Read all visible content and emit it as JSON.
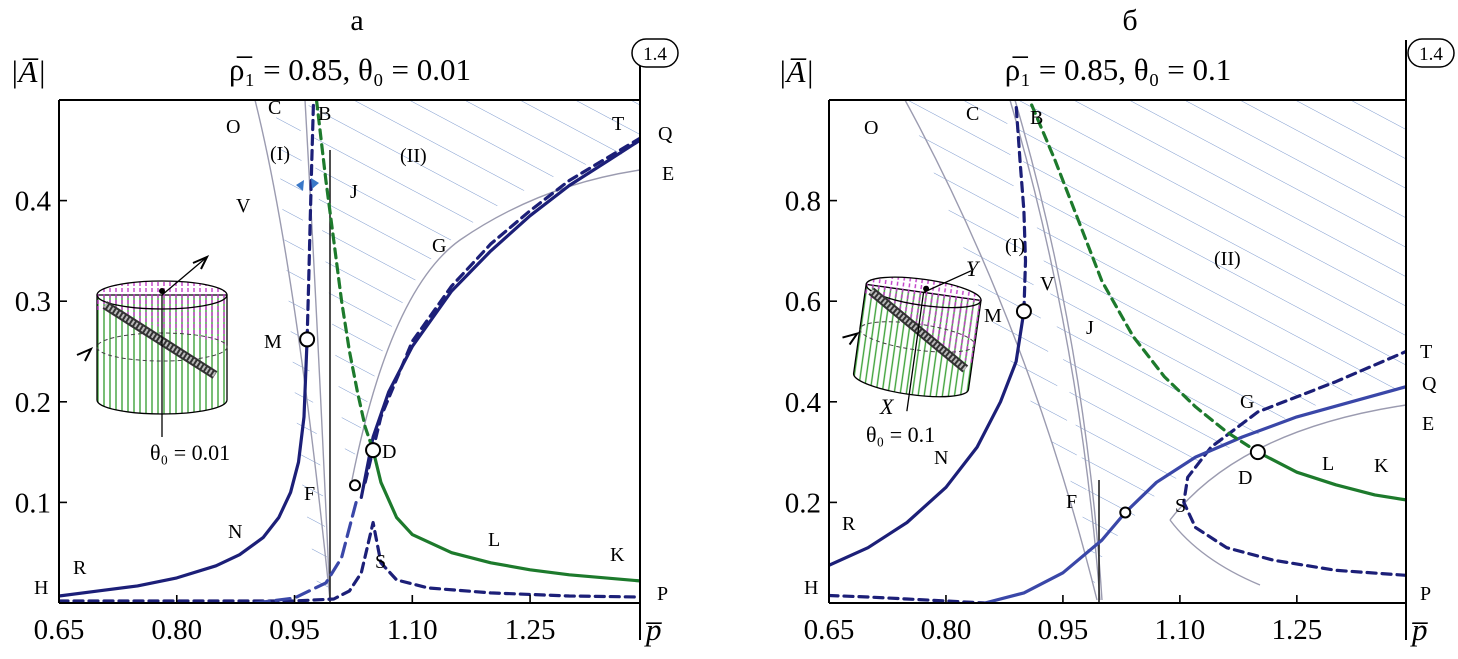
{
  "figure_label": "1.4",
  "axis_y_label": "|A̅|",
  "axis_x_label": "p̅",
  "colors": {
    "navy": "#1c1f78",
    "blue": "#3a47a8",
    "green": "#1d7a2c",
    "hatch": "#6f8fc9",
    "gray": "#9b9bb0"
  },
  "chart_data": [
    {
      "type": "line",
      "panel_label": "а",
      "title": "ρ̅₁ = 0.85, θ₀ = 0.01",
      "xlabel": "p̅",
      "ylabel": "|A̅|",
      "x_ticks": [
        "0.65",
        "0.80",
        "0.95",
        "1.10",
        "1.25"
      ],
      "y_ticks": [
        "0.1",
        "0.2",
        "0.3",
        "0.4"
      ],
      "xlim": [
        0.65,
        1.39
      ],
      "ylim": [
        0.0,
        0.5
      ],
      "inset_label": "θ₀ = 0.01",
      "region_labels": [
        "(I)",
        "(II)"
      ],
      "point_labels": [
        "O",
        "C",
        "B",
        "T",
        "Q",
        "E",
        "V",
        "J",
        "G",
        "M",
        "D",
        "F",
        "N",
        "L",
        "K",
        "S",
        "R",
        "H",
        "P"
      ],
      "marked_points": [
        {
          "name": "M",
          "x": 0.966,
          "y": 0.262
        },
        {
          "name": "D",
          "x": 1.05,
          "y": 0.152
        },
        {
          "name": "F",
          "x": 1.027,
          "y": 0.117
        }
      ],
      "series": [
        {
          "label": "N–M (solid)",
          "color": "navy",
          "dash": "solid",
          "x": [
            0.65,
            0.7,
            0.75,
            0.8,
            0.85,
            0.88,
            0.91,
            0.93,
            0.945,
            0.955,
            0.962,
            0.966
          ],
          "y": [
            0.007,
            0.012,
            0.017,
            0.025,
            0.037,
            0.048,
            0.065,
            0.085,
            0.11,
            0.14,
            0.185,
            0.262
          ]
        },
        {
          "label": "M–C (dashed)",
          "color": "navy",
          "dash": "dash",
          "x": [
            0.966,
            0.968,
            0.97,
            0.972,
            0.974
          ],
          "y": [
            0.262,
            0.32,
            0.38,
            0.44,
            0.495
          ]
        },
        {
          "label": "lower dashed",
          "color": "navy",
          "dash": "dash",
          "x": [
            0.65,
            0.8,
            0.95,
            1.0,
            1.02,
            1.035,
            1.05,
            1.06,
            1.08,
            1.12,
            1.2,
            1.3,
            1.39
          ],
          "y": [
            0.002,
            0.002,
            0.002,
            0.004,
            0.012,
            0.03,
            0.08,
            0.04,
            0.023,
            0.015,
            0.01,
            0.007,
            0.006
          ]
        },
        {
          "label": "G–T (solid)",
          "color": "navy",
          "dash": "solid",
          "x": [
            1.035,
            1.05,
            1.07,
            1.1,
            1.15,
            1.2,
            1.25,
            1.3,
            1.35,
            1.39
          ],
          "y": [
            0.105,
            0.165,
            0.21,
            0.255,
            0.31,
            0.35,
            0.385,
            0.415,
            0.44,
            0.46
          ]
        },
        {
          "label": "upper dashed",
          "color": "navy",
          "dash": "dash",
          "x": [
            1.04,
            1.06,
            1.1,
            1.15,
            1.2,
            1.25,
            1.3,
            1.39
          ],
          "y": [
            0.12,
            0.185,
            0.26,
            0.315,
            0.357,
            0.39,
            0.42,
            0.462
          ]
        },
        {
          "label": "blue dashed",
          "color": "blue",
          "dash": "longdash",
          "x": [
            0.9,
            0.95,
            0.99,
            1.01,
            1.02,
            1.03
          ],
          "y": [
            0.0,
            0.005,
            0.02,
            0.045,
            0.075,
            0.105
          ]
        },
        {
          "label": "B–D (dashed)",
          "color": "green",
          "dash": "dash",
          "x": [
            0.978,
            0.99,
            1.0,
            1.01,
            1.02,
            1.03,
            1.04,
            1.05
          ],
          "y": [
            0.5,
            0.42,
            0.36,
            0.3,
            0.25,
            0.21,
            0.175,
            0.152
          ]
        },
        {
          "label": "D–K (solid)",
          "color": "green",
          "dash": "solid",
          "x": [
            1.05,
            1.06,
            1.08,
            1.1,
            1.15,
            1.2,
            1.25,
            1.3,
            1.39
          ],
          "y": [
            0.152,
            0.12,
            0.085,
            0.068,
            0.05,
            0.04,
            0.033,
            0.028,
            0.022
          ]
        }
      ]
    },
    {
      "type": "line",
      "panel_label": "б",
      "title": "ρ̅₁ = 0.85, θ₀ = 0.1",
      "xlabel": "p̅",
      "ylabel": "|A̅|",
      "x_ticks": [
        "0.65",
        "0.80",
        "0.95",
        "1.10",
        "1.25"
      ],
      "y_ticks": [
        "0.2",
        "0.4",
        "0.6",
        "0.8"
      ],
      "xlim": [
        0.65,
        1.39
      ],
      "ylim": [
        0.0,
        1.0
      ],
      "inset_label": "θ₀ = 0.1",
      "inset_axes": [
        "X",
        "Y"
      ],
      "region_labels": [
        "(I)",
        "(II)"
      ],
      "point_labels": [
        "O",
        "C",
        "B",
        "T",
        "Q",
        "E",
        "V",
        "J",
        "G",
        "M",
        "D",
        "F",
        "N",
        "L",
        "K",
        "S",
        "R",
        "H",
        "P"
      ],
      "marked_points": [
        {
          "name": "M",
          "x": 0.9,
          "y": 0.58
        },
        {
          "name": "D",
          "x": 1.2,
          "y": 0.3
        },
        {
          "name": "F",
          "x": 1.03,
          "y": 0.18
        }
      ],
      "series": [
        {
          "label": "R–M (solid)",
          "color": "navy",
          "dash": "solid",
          "x": [
            0.65,
            0.7,
            0.75,
            0.8,
            0.84,
            0.87,
            0.89,
            0.9
          ],
          "y": [
            0.075,
            0.11,
            0.16,
            0.23,
            0.31,
            0.4,
            0.48,
            0.58
          ]
        },
        {
          "label": "M–C (dashed)",
          "color": "navy",
          "dash": "dash",
          "x": [
            0.9,
            0.902,
            0.9,
            0.895,
            0.89
          ],
          "y": [
            0.58,
            0.68,
            0.78,
            0.88,
            0.99
          ]
        },
        {
          "label": "lower dashed",
          "color": "navy",
          "dash": "dash",
          "x": [
            0.65,
            0.7,
            0.75,
            0.8,
            0.85
          ],
          "y": [
            0.015,
            0.012,
            0.008,
            0.004,
            0.0
          ]
        },
        {
          "label": "S loop (dashed)",
          "color": "navy",
          "dash": "dash",
          "x": [
            1.39,
            1.3,
            1.22,
            1.16,
            1.12,
            1.105,
            1.11,
            1.14,
            1.2,
            1.3,
            1.39
          ],
          "y": [
            0.055,
            0.065,
            0.085,
            0.11,
            0.15,
            0.2,
            0.25,
            0.31,
            0.38,
            0.44,
            0.5
          ]
        },
        {
          "label": "F–T (blue)",
          "color": "blue",
          "dash": "solid",
          "x": [
            0.85,
            0.9,
            0.95,
            1.0,
            1.03,
            1.07,
            1.12,
            1.18,
            1.25,
            1.32,
            1.39
          ],
          "y": [
            0.0,
            0.02,
            0.06,
            0.125,
            0.18,
            0.24,
            0.29,
            0.33,
            0.37,
            0.4,
            0.43
          ]
        },
        {
          "label": "B–D (dashed)",
          "color": "green",
          "dash": "dash",
          "x": [
            0.91,
            0.94,
            0.97,
            1.0,
            1.04,
            1.08,
            1.12,
            1.16,
            1.2
          ],
          "y": [
            0.99,
            0.88,
            0.76,
            0.64,
            0.53,
            0.45,
            0.39,
            0.34,
            0.3
          ]
        },
        {
          "label": "D–K (solid)",
          "color": "green",
          "dash": "solid",
          "x": [
            1.2,
            1.25,
            1.3,
            1.35,
            1.39
          ],
          "y": [
            0.3,
            0.26,
            0.235,
            0.215,
            0.205
          ]
        }
      ]
    }
  ]
}
